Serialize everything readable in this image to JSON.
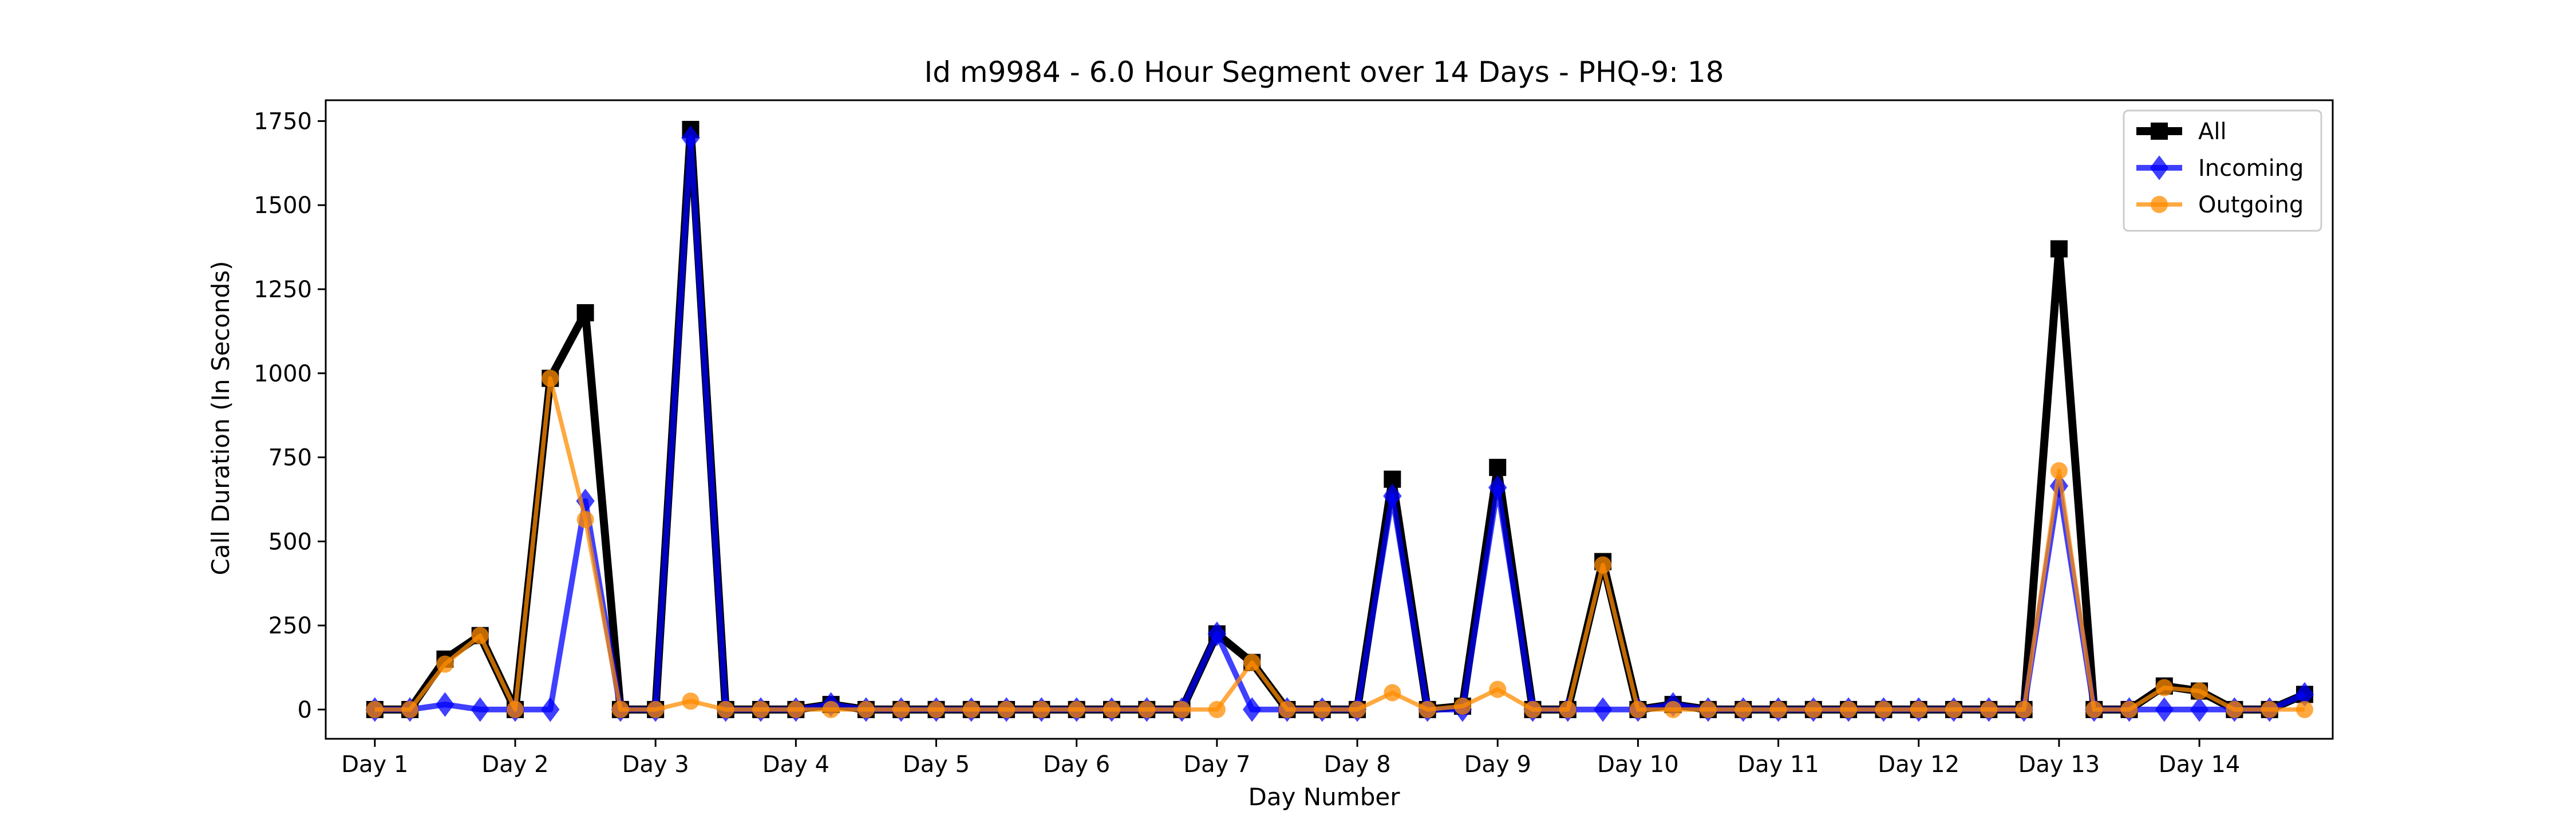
{
  "chart_data": {
    "type": "line",
    "title": "Id m9984 - 6.0 Hour Segment over 14 Days - PHQ-9: 18",
    "xlabel": "Day Number",
    "ylabel": "Call Duration (In Seconds)",
    "xlim": [
      -0.35,
      13.95
    ],
    "ylim": [
      -87,
      1812
    ],
    "grid": false,
    "legend_position": "top-right",
    "categories": [
      "Day 1",
      "Day 2",
      "Day 3",
      "Day 4",
      "Day 5",
      "Day 6",
      "Day 7",
      "Day 8",
      "Day 9",
      "Day 10",
      "Day 11",
      "Day 12",
      "Day 13",
      "Day 14"
    ],
    "y_ticks": [
      0,
      250,
      500,
      750,
      1000,
      1250,
      1500,
      1750
    ],
    "x": [
      0,
      0.25,
      0.5,
      0.75,
      1,
      1.25,
      1.5,
      1.75,
      2,
      2.25,
      2.5,
      2.75,
      3,
      3.25,
      3.5,
      3.75,
      4,
      4.25,
      4.5,
      4.75,
      5,
      5.25,
      5.5,
      5.75,
      6,
      6.25,
      6.5,
      6.75,
      7,
      7.25,
      7.5,
      7.75,
      8,
      8.25,
      8.5,
      8.75,
      9,
      9.25,
      9.5,
      9.75,
      10,
      10.25,
      10.5,
      10.75,
      11,
      11.25,
      11.5,
      11.75,
      12,
      12.25,
      12.5,
      12.75,
      13,
      13.25,
      13.5,
      13.75
    ],
    "series": [
      {
        "name": "All",
        "color": "#000000",
        "marker": "square",
        "values": [
          0,
          0,
          150,
          220,
          0,
          985,
          1180,
          0,
          0,
          1725,
          0,
          0,
          0,
          15,
          0,
          0,
          0,
          0,
          0,
          0,
          0,
          0,
          0,
          0,
          225,
          140,
          0,
          0,
          0,
          685,
          0,
          10,
          720,
          0,
          0,
          440,
          0,
          15,
          0,
          0,
          0,
          0,
          0,
          0,
          0,
          0,
          0,
          0,
          1370,
          0,
          0,
          70,
          55,
          0,
          0,
          45
        ]
      },
      {
        "name": "Incoming",
        "color": "#0000ff",
        "marker": "diamond",
        "values": [
          0,
          0,
          15,
          0,
          0,
          0,
          620,
          0,
          0,
          1700,
          0,
          0,
          0,
          15,
          0,
          0,
          0,
          0,
          0,
          0,
          0,
          0,
          0,
          0,
          225,
          0,
          0,
          0,
          0,
          635,
          0,
          0,
          660,
          0,
          0,
          0,
          0,
          15,
          0,
          0,
          0,
          0,
          0,
          0,
          0,
          0,
          0,
          0,
          665,
          0,
          0,
          0,
          0,
          0,
          0,
          45
        ]
      },
      {
        "name": "Outgoing",
        "color": "#ff8c00",
        "marker": "circle",
        "values": [
          0,
          0,
          135,
          220,
          0,
          985,
          565,
          0,
          0,
          25,
          0,
          0,
          0,
          0,
          0,
          0,
          0,
          0,
          0,
          0,
          0,
          0,
          0,
          0,
          0,
          140,
          0,
          0,
          0,
          50,
          0,
          10,
          60,
          0,
          0,
          430,
          0,
          0,
          0,
          0,
          0,
          0,
          0,
          0,
          0,
          0,
          0,
          0,
          710,
          0,
          0,
          65,
          55,
          0,
          0,
          0
        ]
      }
    ]
  }
}
